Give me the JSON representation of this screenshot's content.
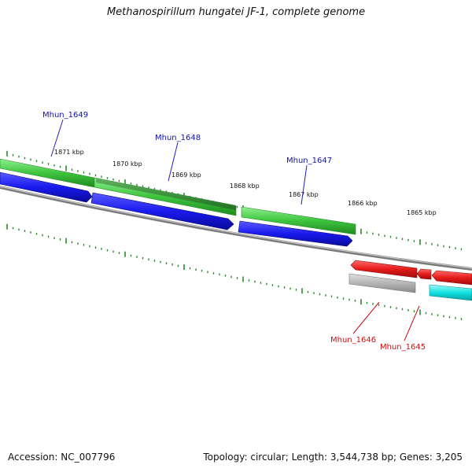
{
  "title": "Methanospirillum hungatei JF-1, complete genome",
  "footer": {
    "accession": "Accession: NC_007796",
    "info": "Topology: circular; Length: 3,544,738 bp; Genes: 3,205"
  },
  "colors": {
    "forward_gene": "#3ec43e",
    "forward_gene_dark": "#2e8b2e",
    "forward_cds": "#1a1aee",
    "reverse_gene": "#e51b1b",
    "reverse_cds_gray": "#b5b5b5",
    "reverse_cds_cyan": "#11e0e0",
    "backbone": "#888888",
    "tick": "#2a8a2a",
    "label_blue": "#1010b0",
    "label_red": "#cc1111"
  },
  "kbp_labels": [
    "1871 kbp",
    "1870 kbp",
    "1869 kbp",
    "1868 kbp",
    "1867 kbp",
    "1866 kbp",
    "1865 kbp"
  ],
  "gene_labels": {
    "mhun_1649": "Mhun_1649",
    "mhun_1648": "Mhun_1648",
    "mhun_1647": "Mhun_1647",
    "mhun_1646": "Mhun_1646",
    "mhun_1645": "Mhun_1645"
  }
}
